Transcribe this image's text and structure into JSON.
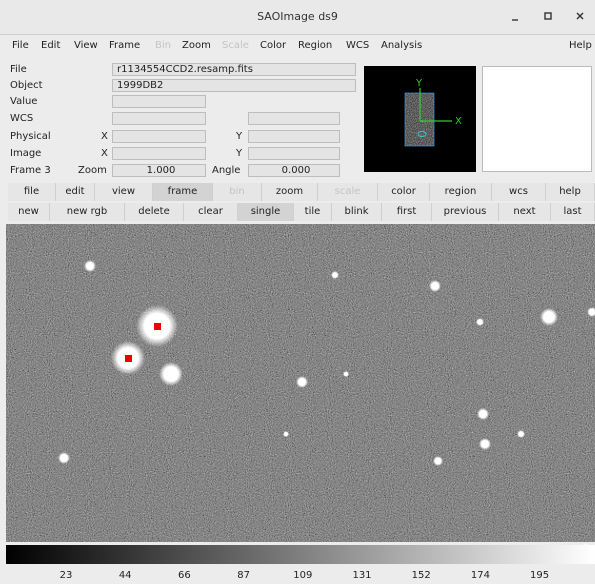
{
  "window": {
    "title": "SAOImage ds9"
  },
  "menu": [
    "File",
    "Edit",
    "View",
    "Frame",
    "Bin",
    "Zoom",
    "Scale",
    "Color",
    "Region",
    "WCS",
    "Analysis",
    "Help"
  ],
  "info": {
    "file_label": "File",
    "file": "r1134554CCD2.resamp.fits",
    "object_label": "Object",
    "object": "1999DB2",
    "value_label": "Value",
    "wcs_label": "WCS",
    "physical_label": "Physical",
    "image_label": "Image",
    "frame_label": "Frame 3",
    "x_label": "X",
    "y_label": "Y",
    "zoom_label": "Zoom",
    "zoom": "1.000",
    "angle_label": "Angle",
    "angle": "0.000"
  },
  "panner": {
    "x_label": "X",
    "y_label": "Y"
  },
  "buttons": {
    "major": [
      "file",
      "edit",
      "view",
      "frame",
      "bin",
      "zoom",
      "scale",
      "color",
      "region",
      "wcs",
      "help"
    ],
    "minor": [
      "new",
      "new rgb",
      "delete",
      "clear",
      "single",
      "tile",
      "blink",
      "first",
      "previous",
      "next",
      "last"
    ]
  },
  "colorbar": {
    "labels": [
      23,
      44,
      66,
      87,
      109,
      131,
      152,
      174,
      195
    ]
  }
}
